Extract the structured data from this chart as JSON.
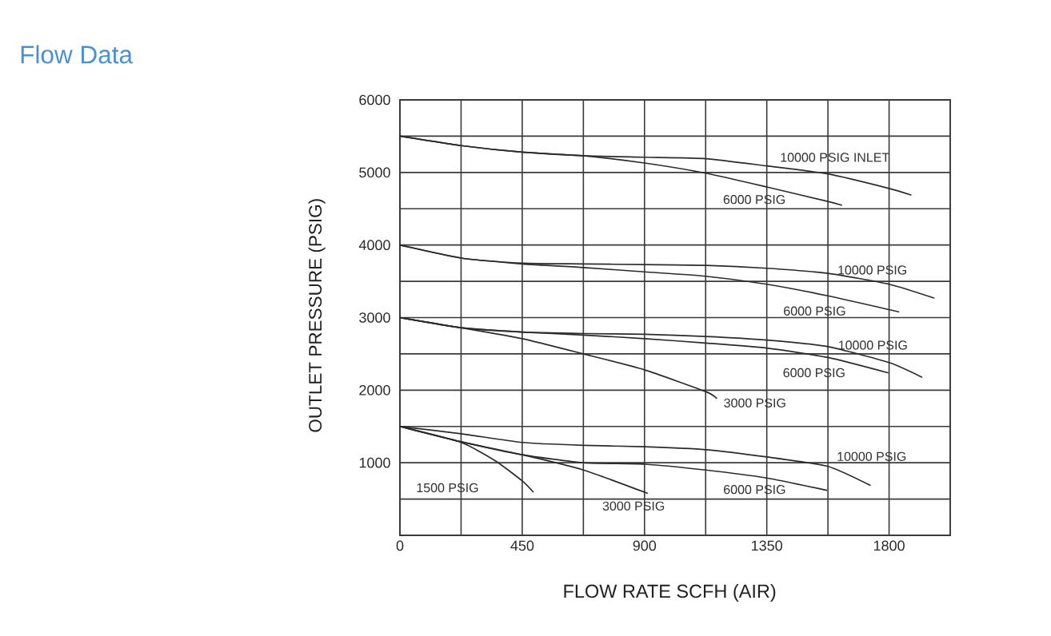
{
  "chart_data": {
    "type": "line",
    "title": "Flow Data",
    "xlabel": "FLOW RATE SCFH (AIR)",
    "ylabel": "OUTLET PRESSURE (PSIG)",
    "xlim": [
      0,
      2025
    ],
    "ylim": [
      0,
      6000
    ],
    "xticks": [
      0,
      {
        "value": 225,
        "label": null
      },
      450,
      {
        "value": 675,
        "label": null
      },
      900,
      {
        "value": 1125,
        "label": null
      },
      1350,
      {
        "value": 1575,
        "label": null
      },
      1800
    ],
    "yticks": [
      {
        "value": 500,
        "label": null
      },
      1000,
      {
        "value": 1500,
        "label": null
      },
      2000,
      {
        "value": 2500,
        "label": null
      },
      3000,
      {
        "value": 3500,
        "label": null
      },
      4000,
      {
        "value": 4500,
        "label": null
      },
      5000,
      {
        "value": 5500,
        "label": null
      },
      6000
    ],
    "grid": true,
    "series": [
      {
        "name": "10000 PSIG INLET",
        "color": "#2b2b2b",
        "x": [
          0,
          225,
          450,
          675,
          900,
          1125,
          1350,
          1575,
          1800,
          1880
        ],
        "values": [
          5500,
          5370,
          5280,
          5230,
          5210,
          5190,
          5090,
          4980,
          4780,
          4690
        ]
      },
      {
        "name": "6000 PSIG",
        "color": "#2b2b2b",
        "x": [
          0,
          225,
          450,
          675,
          900,
          1125,
          1350,
          1575,
          1625
        ],
        "values": [
          5500,
          5370,
          5280,
          5230,
          5130,
          4990,
          4800,
          4600,
          4550
        ]
      },
      {
        "name": "10000 PSIG",
        "color": "#2b2b2b",
        "x": [
          0,
          225,
          450,
          675,
          900,
          1125,
          1350,
          1575,
          1800,
          1965
        ],
        "values": [
          4000,
          3820,
          3750,
          3740,
          3730,
          3720,
          3680,
          3610,
          3460,
          3270
        ]
      },
      {
        "name": "6000 PSIG",
        "color": "#2b2b2b",
        "x": [
          0,
          225,
          450,
          675,
          900,
          1125,
          1350,
          1575,
          1800,
          1835
        ],
        "values": [
          4000,
          3820,
          3740,
          3690,
          3630,
          3570,
          3460,
          3300,
          3110,
          3080
        ]
      },
      {
        "name": "10000 PSIG",
        "color": "#2b2b2b",
        "x": [
          0,
          225,
          450,
          675,
          900,
          1125,
          1350,
          1575,
          1800,
          1920
        ],
        "values": [
          3000,
          2860,
          2800,
          2780,
          2770,
          2740,
          2690,
          2600,
          2380,
          2180
        ]
      },
      {
        "name": "6000 PSIG",
        "color": "#2b2b2b",
        "x": [
          0,
          225,
          450,
          675,
          900,
          1125,
          1350,
          1575,
          1795
        ],
        "values": [
          3000,
          2860,
          2800,
          2760,
          2710,
          2650,
          2580,
          2450,
          2240
        ]
      },
      {
        "name": "3000 PSIG",
        "color": "#2b2b2b",
        "x": [
          0,
          225,
          450,
          675,
          900,
          1125,
          1165
        ],
        "values": [
          3000,
          2860,
          2710,
          2500,
          2280,
          1980,
          1890
        ]
      },
      {
        "name": "10000 PSIG",
        "color": "#2b2b2b",
        "x": [
          0,
          225,
          450,
          675,
          900,
          1125,
          1350,
          1575,
          1730
        ],
        "values": [
          1500,
          1400,
          1280,
          1240,
          1220,
          1180,
          1080,
          950,
          690
        ]
      },
      {
        "name": "1500 PSIG",
        "color": "#2b2b2b",
        "x": [
          0,
          225,
          350,
          450,
          490
        ],
        "values": [
          1500,
          1280,
          1030,
          750,
          600
        ]
      },
      {
        "name": "3000 PSIG",
        "color": "#2b2b2b",
        "x": [
          0,
          225,
          450,
          675,
          910
        ],
        "values": [
          1500,
          1290,
          1110,
          900,
          580
        ]
      },
      {
        "name": "6000 PSIG",
        "color": "#2b2b2b",
        "x": [
          0,
          225,
          450,
          675,
          900,
          1125,
          1350,
          1570
        ],
        "values": [
          1500,
          1290,
          1110,
          1000,
          980,
          900,
          790,
          620
        ]
      }
    ]
  }
}
